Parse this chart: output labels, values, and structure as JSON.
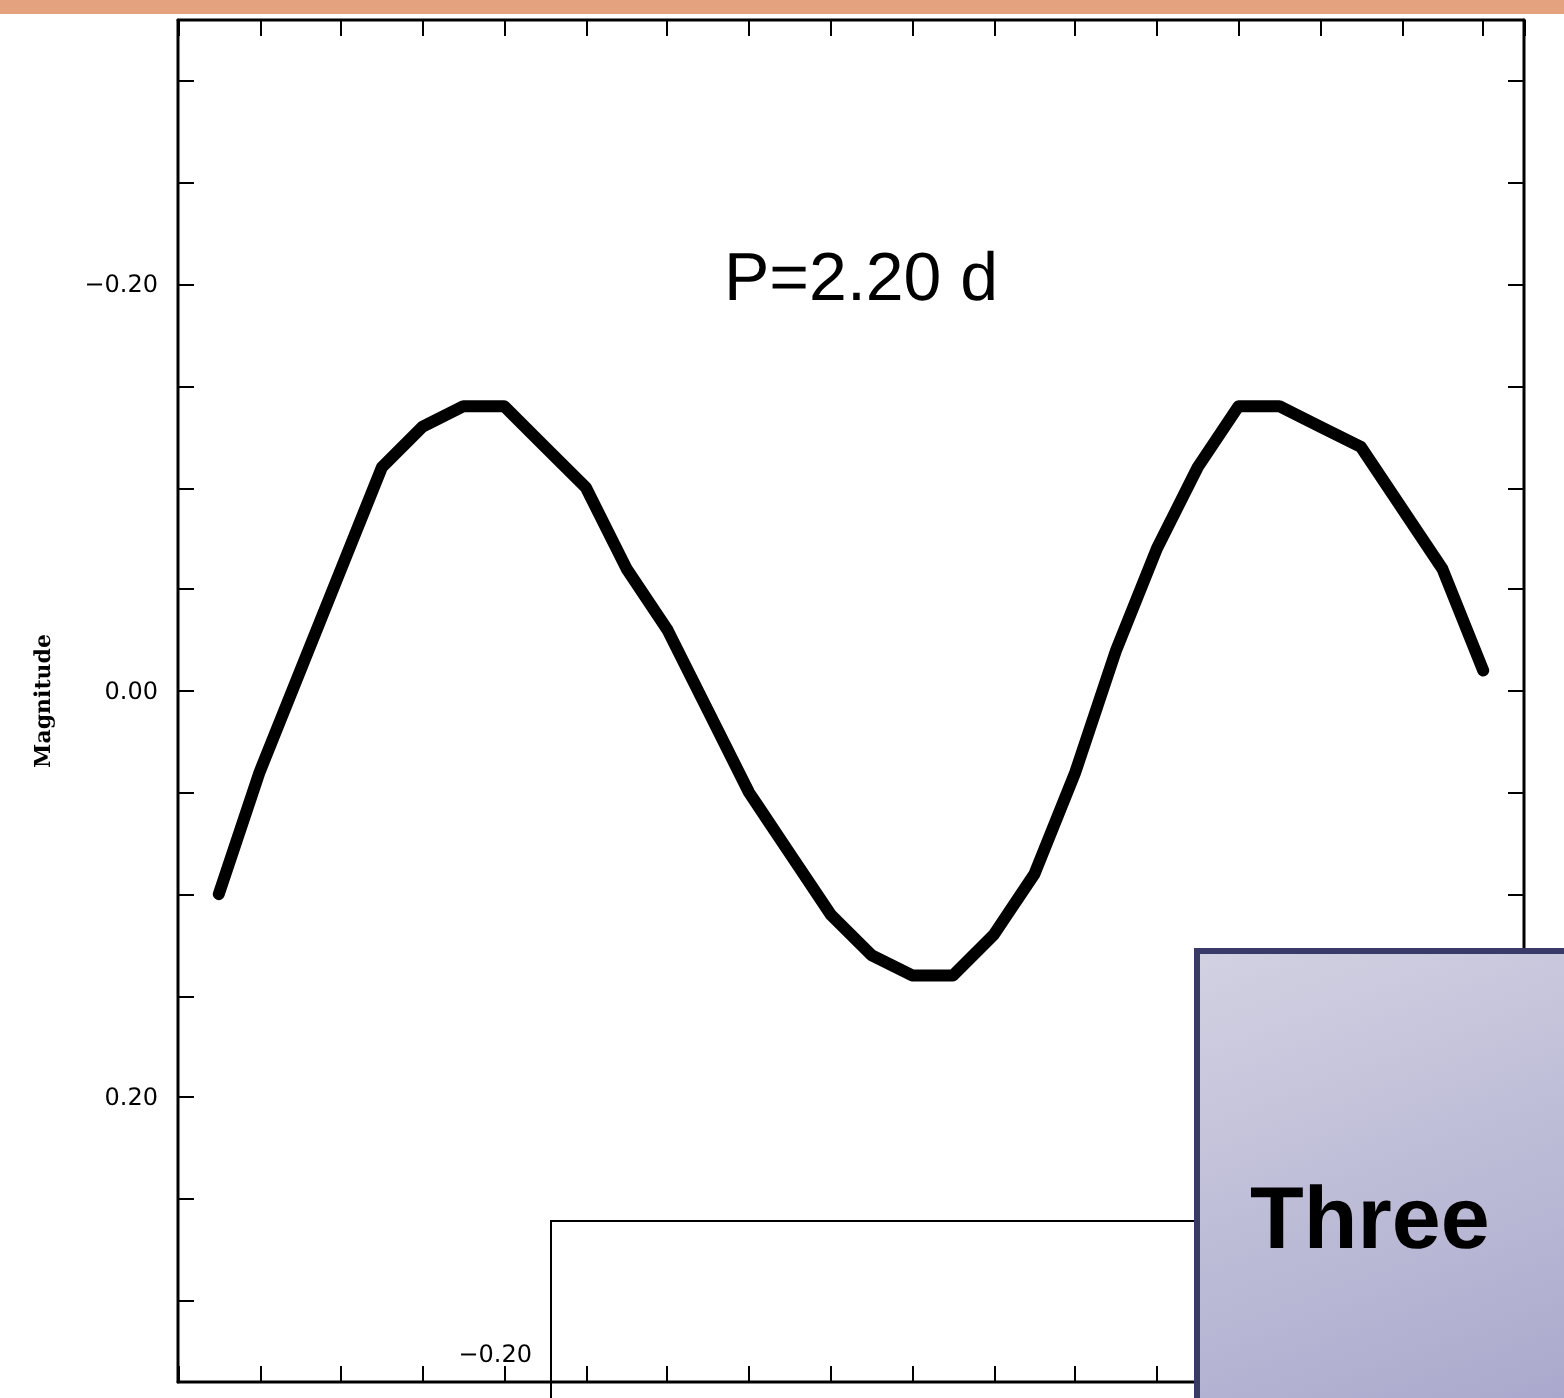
{
  "chart_data": [
    {
      "type": "line",
      "ylabel": "Magnitude",
      "annotations": [
        "P=2.20 d"
      ],
      "categories": [
        null,
        null,
        null,
        null,
        null,
        null,
        null,
        null,
        null,
        null,
        null,
        null,
        null,
        null,
        null,
        null,
        null,
        null,
        null,
        null,
        null,
        null,
        null,
        null,
        null,
        null,
        null,
        null,
        null,
        null,
        null,
        null,
        null,
        null
      ],
      "series": [
        {
          "color": "#000000",
          "values": [
            null,
            0.1,
            0.04,
            -0.01,
            -0.06,
            -0.11,
            -0.13,
            -0.14,
            -0.14,
            -0.12,
            -0.1,
            -0.06,
            -0.03,
            0.01,
            0.05,
            0.08,
            0.11,
            0.13,
            0.14,
            0.14,
            0.12,
            0.09,
            0.04,
            -0.02,
            -0.07,
            -0.11,
            -0.14,
            -0.14,
            -0.13,
            -0.12,
            -0.09,
            -0.06,
            -0.01,
            null
          ]
        }
      ],
      "ylim": [
        0.34,
        -0.33
      ],
      "yticks": [
        {
          "value": -0.3,
          "label": null
        },
        {
          "value": -0.25,
          "label": null
        },
        {
          "value": -0.2,
          "label": "−0.20"
        },
        {
          "value": -0.15,
          "label": null
        },
        {
          "value": -0.1,
          "label": null
        },
        {
          "value": -0.05,
          "label": null
        },
        {
          "value": 0,
          "label": "0.00"
        },
        {
          "value": 0.05,
          "label": null
        },
        {
          "value": 0.1,
          "label": null
        },
        {
          "value": 0.15,
          "label": null
        },
        {
          "value": 0.2,
          "label": "0.20"
        },
        {
          "value": 0.25,
          "label": null
        },
        {
          "value": 0.3,
          "label": null
        }
      ],
      "marker": "none",
      "line_style": "solid"
    },
    {
      "type": "other",
      "annotations": [
        "−0.20"
      ]
    },
    {
      "type": "other",
      "annotations": [
        "Three"
      ]
    }
  ]
}
